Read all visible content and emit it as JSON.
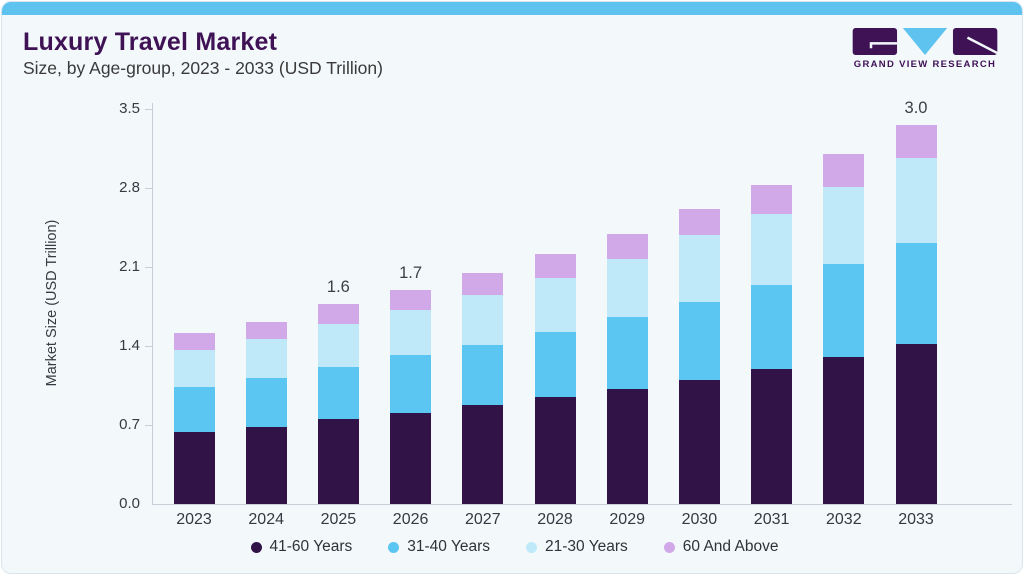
{
  "header": {
    "title": "Luxury Travel Market",
    "subtitle": "Size, by Age-group, 2023 - 2033 (USD Trillion)"
  },
  "logo": {
    "brand": "GRAND VIEW RESEARCH",
    "mark_colors": {
      "purple": "#3e1254",
      "blue": "#5fc3ef"
    }
  },
  "chart_data": {
    "type": "bar",
    "stacked": true,
    "title": "Luxury Travel Market Size, by Age-group, 2023 - 2033 (USD Trillion)",
    "xlabel": "",
    "ylabel": "Market Size (USD Trillion)",
    "ylim": [
      0,
      3.5
    ],
    "ytick_labels": [
      "0.0",
      "0.7",
      "1.4",
      "2.1",
      "2.8",
      "3.5"
    ],
    "grid": false,
    "legend_position": "bottom",
    "categories": [
      "2023",
      "2024",
      "2025",
      "2026",
      "2027",
      "2028",
      "2029",
      "2030",
      "2031",
      "2032",
      "2033"
    ],
    "series": [
      {
        "name": "41-60 Years",
        "color": "#321348",
        "values": [
          0.58,
          0.62,
          0.68,
          0.73,
          0.79,
          0.86,
          0.92,
          0.99,
          1.08,
          1.18,
          1.28
        ]
      },
      {
        "name": "31-40 Years",
        "color": "#5ac6f1",
        "values": [
          0.36,
          0.39,
          0.42,
          0.46,
          0.48,
          0.52,
          0.58,
          0.63,
          0.67,
          0.74,
          0.81
        ]
      },
      {
        "name": "21-30 Years",
        "color": "#bfe9f8",
        "values": [
          0.29,
          0.31,
          0.34,
          0.36,
          0.4,
          0.43,
          0.46,
          0.53,
          0.57,
          0.62,
          0.68
        ]
      },
      {
        "name": "60 And Above",
        "color": "#d1a9e9",
        "values": [
          0.14,
          0.14,
          0.16,
          0.16,
          0.18,
          0.19,
          0.2,
          0.21,
          0.23,
          0.26,
          0.26
        ]
      }
    ],
    "total_labels": {
      "2025": "1.6",
      "2026": "1.7",
      "2033": "3.0"
    },
    "totals": [
      1.37,
      1.46,
      1.6,
      1.71,
      1.85,
      2.0,
      2.16,
      2.36,
      2.55,
      2.8,
      3.03
    ]
  }
}
